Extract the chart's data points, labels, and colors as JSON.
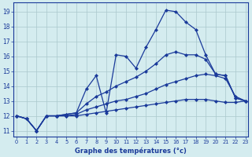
{
  "title": "Graphe des températures (°c)",
  "background_color": "#d4ecef",
  "grid_color": "#aac8cc",
  "line_color": "#1a3a9a",
  "x_ticks": [
    0,
    1,
    2,
    3,
    4,
    5,
    6,
    7,
    8,
    9,
    10,
    11,
    12,
    13,
    14,
    15,
    16,
    17,
    18,
    19,
    20,
    21,
    22,
    23
  ],
  "y_ticks": [
    11,
    12,
    13,
    14,
    15,
    16,
    17,
    18,
    19
  ],
  "xlim": [
    -0.3,
    23.3
  ],
  "ylim": [
    10.6,
    19.6
  ],
  "series": {
    "line1": [
      12.0,
      11.8,
      11.0,
      12.0,
      12.0,
      12.1,
      12.2,
      13.8,
      14.7,
      12.2,
      16.1,
      16.0,
      15.2,
      16.6,
      17.8,
      19.1,
      19.0,
      18.3,
      17.8,
      16.1,
      14.8,
      14.7,
      13.2,
      13.0
    ],
    "line2": [
      12.0,
      11.8,
      11.0,
      12.0,
      12.0,
      12.1,
      12.2,
      12.8,
      13.3,
      13.6,
      14.0,
      14.3,
      14.6,
      15.0,
      15.5,
      16.1,
      16.3,
      16.1,
      16.1,
      15.8,
      14.8,
      14.7,
      13.2,
      13.0
    ],
    "line3": [
      12.0,
      11.8,
      11.0,
      12.0,
      12.0,
      12.0,
      12.1,
      12.4,
      12.6,
      12.8,
      13.0,
      13.1,
      13.3,
      13.5,
      13.8,
      14.1,
      14.3,
      14.5,
      14.7,
      14.8,
      14.7,
      14.5,
      13.3,
      13.0
    ],
    "line4": [
      12.0,
      11.8,
      11.0,
      12.0,
      12.0,
      12.0,
      12.0,
      12.1,
      12.2,
      12.3,
      12.4,
      12.5,
      12.6,
      12.7,
      12.8,
      12.9,
      13.0,
      13.1,
      13.1,
      13.1,
      13.0,
      12.9,
      12.9,
      13.0
    ]
  }
}
